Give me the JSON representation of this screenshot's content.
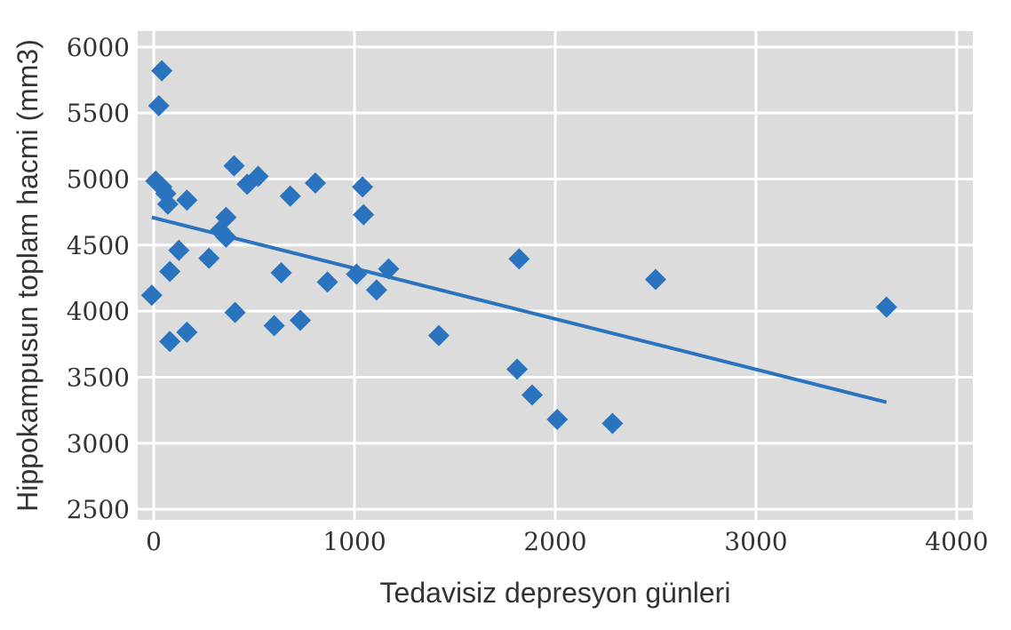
{
  "chart_data": {
    "type": "scatter",
    "title": "",
    "xlabel": "Tedavisiz depresyon günleri",
    "ylabel": "Hippokampusun toplam hacmi (mm3)",
    "xlim": [
      -80,
      4080
    ],
    "ylim": [
      2420,
      6120
    ],
    "xticks": [
      0,
      1000,
      2000,
      3000,
      4000
    ],
    "yticks": [
      2500,
      3000,
      3500,
      4000,
      4500,
      5000,
      5500,
      6000
    ],
    "grid": true,
    "background": "#dcdcdc",
    "grid_color": "#ffffff",
    "marker_color": "#2a73be",
    "trend_color": "#2a73be",
    "marker_shape": "diamond",
    "points": [
      {
        "x": 40,
        "y": 5820
      },
      {
        "x": 25,
        "y": 5555
      },
      {
        "x": 10,
        "y": 4985
      },
      {
        "x": 40,
        "y": 4940
      },
      {
        "x": 60,
        "y": 4890
      },
      {
        "x": 70,
        "y": 4810
      },
      {
        "x": 165,
        "y": 4840
      },
      {
        "x": -10,
        "y": 4120
      },
      {
        "x": 80,
        "y": 4300
      },
      {
        "x": 125,
        "y": 4460
      },
      {
        "x": 80,
        "y": 3770
      },
      {
        "x": 165,
        "y": 3840
      },
      {
        "x": 275,
        "y": 4400
      },
      {
        "x": 330,
        "y": 4610
      },
      {
        "x": 360,
        "y": 4710
      },
      {
        "x": 360,
        "y": 4560
      },
      {
        "x": 400,
        "y": 5100
      },
      {
        "x": 405,
        "y": 3990
      },
      {
        "x": 465,
        "y": 4960
      },
      {
        "x": 520,
        "y": 5020
      },
      {
        "x": 600,
        "y": 3890
      },
      {
        "x": 635,
        "y": 4290
      },
      {
        "x": 680,
        "y": 4870
      },
      {
        "x": 730,
        "y": 3930
      },
      {
        "x": 805,
        "y": 4970
      },
      {
        "x": 865,
        "y": 4220
      },
      {
        "x": 1010,
        "y": 4280
      },
      {
        "x": 1040,
        "y": 4940
      },
      {
        "x": 1045,
        "y": 4730
      },
      {
        "x": 1110,
        "y": 4160
      },
      {
        "x": 1170,
        "y": 4320
      },
      {
        "x": 1420,
        "y": 3815
      },
      {
        "x": 1820,
        "y": 4395
      },
      {
        "x": 1810,
        "y": 3560
      },
      {
        "x": 1885,
        "y": 3365
      },
      {
        "x": 2010,
        "y": 3180
      },
      {
        "x": 2285,
        "y": 3150
      },
      {
        "x": 2500,
        "y": 4240
      },
      {
        "x": 3650,
        "y": 4030
      }
    ],
    "trendline": {
      "x": [
        -10,
        3650
      ],
      "y": [
        4710,
        3310
      ]
    }
  }
}
